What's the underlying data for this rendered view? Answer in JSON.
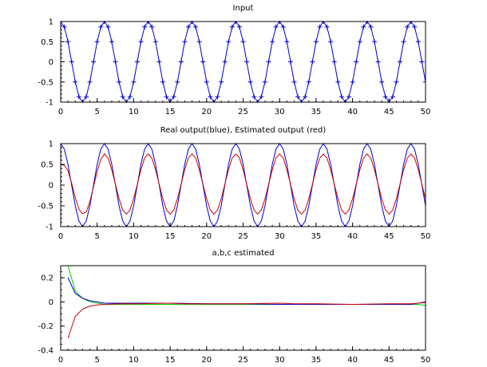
{
  "chart_data": [
    {
      "type": "line",
      "title": "Input",
      "xlim": [
        0,
        50
      ],
      "ylim": [
        -1,
        1
      ],
      "x_ticks": [
        "0",
        "5",
        "10",
        "15",
        "20",
        "25",
        "30",
        "35",
        "40",
        "45",
        "50"
      ],
      "y_ticks": [
        "1",
        "0.5",
        "0",
        "-0.5",
        "-1"
      ],
      "grid": false,
      "x": [
        0.0,
        0.5,
        1.0,
        1.5,
        2.0,
        2.5,
        3.0,
        3.5,
        4.0,
        4.5,
        5.0,
        5.5,
        6.0,
        6.5,
        7.0,
        7.5,
        8.0,
        8.5,
        9.0,
        9.5,
        10.0,
        10.5,
        11.0,
        11.5,
        12.0,
        12.5,
        13.0,
        13.5,
        14.0,
        14.5,
        15.0,
        15.5,
        16.0,
        16.5,
        17.0,
        17.5,
        18.0,
        18.5,
        19.0,
        19.5,
        20.0,
        20.5,
        21.0,
        21.5,
        22.0,
        22.5,
        23.0,
        23.5,
        24.0,
        24.5,
        25.0,
        25.5,
        26.0,
        26.5,
        27.0,
        27.5,
        28.0,
        28.5,
        29.0,
        29.5,
        30.0,
        30.5,
        31.0,
        31.5,
        32.0,
        32.5,
        33.0,
        33.5,
        34.0,
        34.5,
        35.0,
        35.5,
        36.0,
        36.5,
        37.0,
        37.5,
        38.0,
        38.5,
        39.0,
        39.5,
        40.0,
        40.5,
        41.0,
        41.5,
        42.0,
        42.5,
        43.0,
        43.5,
        44.0,
        44.5,
        45.0,
        45.5,
        46.0,
        46.5,
        47.0,
        47.5,
        48.0,
        48.5,
        49.0,
        49.5,
        50.0
      ],
      "series": [
        {
          "color": "#0000cc",
          "marker": "plus",
          "values": [
            1.0,
            0.866,
            0.5,
            0.0,
            -0.5,
            -0.866,
            -1.0,
            -0.866,
            -0.5,
            0.0,
            0.5,
            0.866,
            1.0,
            0.866,
            0.5,
            0.0,
            -0.5,
            -0.866,
            -1.0,
            -0.866,
            -0.5,
            0.0,
            0.5,
            0.866,
            1.0,
            0.866,
            0.5,
            0.0,
            -0.5,
            -0.866,
            -1.0,
            -0.866,
            -0.5,
            0.0,
            0.5,
            0.866,
            1.0,
            0.866,
            0.5,
            0.0,
            -0.5,
            -0.866,
            -1.0,
            -0.866,
            -0.5,
            0.0,
            0.5,
            0.866,
            1.0,
            0.866,
            0.5,
            0.0,
            -0.5,
            -0.866,
            -1.0,
            -0.866,
            -0.5,
            0.0,
            0.5,
            0.866,
            1.0,
            0.866,
            0.5,
            0.0,
            -0.5,
            -0.866,
            -1.0,
            -0.866,
            -0.5,
            0.0,
            0.5,
            0.866,
            1.0,
            0.866,
            0.5,
            0.0,
            -0.5,
            -0.866,
            -1.0,
            -0.866,
            -0.5,
            0.0,
            0.5,
            0.866,
            1.0,
            0.866,
            0.5,
            0.0,
            -0.5,
            -0.866,
            -1.0,
            -0.866,
            -0.5,
            0.0,
            0.5,
            0.866,
            1.0,
            0.866,
            0.5,
            0.0,
            -0.5
          ]
        }
      ]
    },
    {
      "type": "line",
      "title": "Real output(blue), Estimated output (red)",
      "xlim": [
        0,
        50
      ],
      "ylim": [
        -1,
        1
      ],
      "x_ticks": [
        "0",
        "5",
        "10",
        "15",
        "20",
        "25",
        "30",
        "35",
        "40",
        "45",
        "50"
      ],
      "y_ticks": [
        "1",
        "0.5",
        "0",
        "-0.5",
        "-1"
      ],
      "grid": false,
      "x": [
        0.0,
        0.5,
        1.0,
        1.5,
        2.0,
        2.5,
        3.0,
        3.5,
        4.0,
        4.5,
        5.0,
        5.5,
        6.0,
        6.5,
        7.0,
        7.5,
        8.0,
        8.5,
        9.0,
        9.5,
        10.0,
        10.5,
        11.0,
        11.5,
        12.0,
        12.5,
        13.0,
        13.5,
        14.0,
        14.5,
        15.0,
        15.5,
        16.0,
        16.5,
        17.0,
        17.5,
        18.0,
        18.5,
        19.0,
        19.5,
        20.0,
        20.5,
        21.0,
        21.5,
        22.0,
        22.5,
        23.0,
        23.5,
        24.0,
        24.5,
        25.0,
        25.5,
        26.0,
        26.5,
        27.0,
        27.5,
        28.0,
        28.5,
        29.0,
        29.5,
        30.0,
        30.5,
        31.0,
        31.5,
        32.0,
        32.5,
        33.0,
        33.5,
        34.0,
        34.5,
        35.0,
        35.5,
        36.0,
        36.5,
        37.0,
        37.5,
        38.0,
        38.5,
        39.0,
        39.5,
        40.0,
        40.5,
        41.0,
        41.5,
        42.0,
        42.5,
        43.0,
        43.5,
        44.0,
        44.5,
        45.0,
        45.5,
        46.0,
        46.5,
        47.0,
        47.5,
        48.0,
        48.5,
        49.0,
        49.5,
        50.0
      ],
      "series": [
        {
          "color": "#0000cc",
          "values": [
            1.0,
            0.866,
            0.5,
            0.0,
            -0.5,
            -0.866,
            -1.0,
            -0.866,
            -0.5,
            0.0,
            0.5,
            0.866,
            1.0,
            0.866,
            0.5,
            0.0,
            -0.5,
            -0.866,
            -1.0,
            -0.866,
            -0.5,
            0.0,
            0.5,
            0.866,
            1.0,
            0.866,
            0.5,
            0.0,
            -0.5,
            -0.866,
            -1.0,
            -0.866,
            -0.5,
            0.0,
            0.5,
            0.866,
            1.0,
            0.866,
            0.5,
            0.0,
            -0.5,
            -0.866,
            -1.0,
            -0.866,
            -0.5,
            0.0,
            0.5,
            0.866,
            1.0,
            0.866,
            0.5,
            0.0,
            -0.5,
            -0.866,
            -1.0,
            -0.866,
            -0.5,
            0.0,
            0.5,
            0.866,
            1.0,
            0.866,
            0.5,
            0.0,
            -0.5,
            -0.866,
            -1.0,
            -0.866,
            -0.5,
            0.0,
            0.5,
            0.866,
            1.0,
            0.866,
            0.5,
            0.0,
            -0.5,
            -0.866,
            -1.0,
            -0.866,
            -0.5,
            0.0,
            0.5,
            0.866,
            1.0,
            0.866,
            0.5,
            0.0,
            -0.5,
            -0.866,
            -1.0,
            -0.866,
            -0.5,
            0.0,
            0.5,
            0.866,
            1.0,
            0.866,
            0.5,
            0.0,
            -0.5
          ]
        },
        {
          "color": "#cc0000",
          "values": [
            0.49,
            0.48,
            0.35,
            0.05,
            -0.3,
            -0.58,
            -0.69,
            -0.65,
            -0.4,
            -0.04,
            0.33,
            0.62,
            0.75,
            0.65,
            0.37,
            0.02,
            -0.33,
            -0.6,
            -0.7,
            -0.6,
            -0.33,
            0.02,
            0.37,
            0.65,
            0.75,
            0.65,
            0.37,
            0.02,
            -0.33,
            -0.6,
            -0.7,
            -0.6,
            -0.33,
            0.02,
            0.37,
            0.65,
            0.75,
            0.65,
            0.37,
            0.02,
            -0.33,
            -0.6,
            -0.7,
            -0.6,
            -0.33,
            0.02,
            0.37,
            0.65,
            0.75,
            0.65,
            0.37,
            0.02,
            -0.33,
            -0.6,
            -0.7,
            -0.6,
            -0.33,
            0.02,
            0.37,
            0.65,
            0.75,
            0.65,
            0.37,
            0.02,
            -0.33,
            -0.6,
            -0.7,
            -0.6,
            -0.33,
            0.02,
            0.37,
            0.65,
            0.75,
            0.65,
            0.37,
            0.02,
            -0.33,
            -0.6,
            -0.7,
            -0.6,
            -0.33,
            0.02,
            0.37,
            0.65,
            0.75,
            0.65,
            0.37,
            0.02,
            -0.33,
            -0.6,
            -0.7,
            -0.6,
            -0.33,
            0.02,
            0.37,
            0.65,
            0.75,
            0.65,
            0.37,
            0.02,
            -0.33
          ]
        }
      ]
    },
    {
      "type": "line",
      "title": "a,b,c estimated",
      "xlim": [
        0,
        50
      ],
      "ylim": [
        -0.4,
        0.3
      ],
      "x_ticks": [
        "0",
        "5",
        "10",
        "15",
        "20",
        "25",
        "30",
        "35",
        "40",
        "45",
        "50"
      ],
      "y_ticks": [
        "0.2",
        "0",
        "-0.2",
        "-0.4"
      ],
      "grid": false,
      "series": [
        {
          "color": "#00cc00",
          "x": [
            1,
            2,
            3,
            4,
            5,
            6,
            8,
            10,
            15,
            20,
            25,
            30,
            35,
            40,
            45,
            48,
            49,
            50
          ],
          "values": [
            0.3,
            0.09,
            0.03,
            0.0,
            -0.01,
            -0.02,
            -0.02,
            -0.02,
            -0.02,
            -0.02,
            -0.02,
            -0.02,
            -0.02,
            -0.02,
            -0.02,
            -0.02,
            -0.02,
            -0.03
          ]
        },
        {
          "color": "#0000cc",
          "x": [
            1,
            2,
            3,
            4,
            5,
            6,
            8,
            10,
            15,
            20,
            25,
            30,
            35,
            40,
            45,
            48,
            49,
            50
          ],
          "values": [
            0.2,
            0.07,
            0.03,
            0.01,
            0.0,
            -0.01,
            -0.01,
            -0.01,
            -0.01,
            -0.015,
            -0.015,
            -0.02,
            -0.02,
            -0.02,
            -0.02,
            -0.02,
            -0.01,
            0.0
          ]
        },
        {
          "color": "#cc0000",
          "x": [
            1,
            2,
            3,
            4,
            5,
            6,
            8,
            10,
            15,
            17,
            20,
            25,
            30,
            32,
            35,
            40,
            45,
            48,
            49,
            50
          ],
          "values": [
            -0.3,
            -0.12,
            -0.06,
            -0.035,
            -0.025,
            -0.02,
            -0.015,
            -0.015,
            -0.01,
            -0.015,
            -0.015,
            -0.015,
            -0.01,
            -0.015,
            -0.015,
            -0.02,
            -0.015,
            -0.015,
            -0.01,
            -0.005
          ]
        }
      ]
    }
  ]
}
